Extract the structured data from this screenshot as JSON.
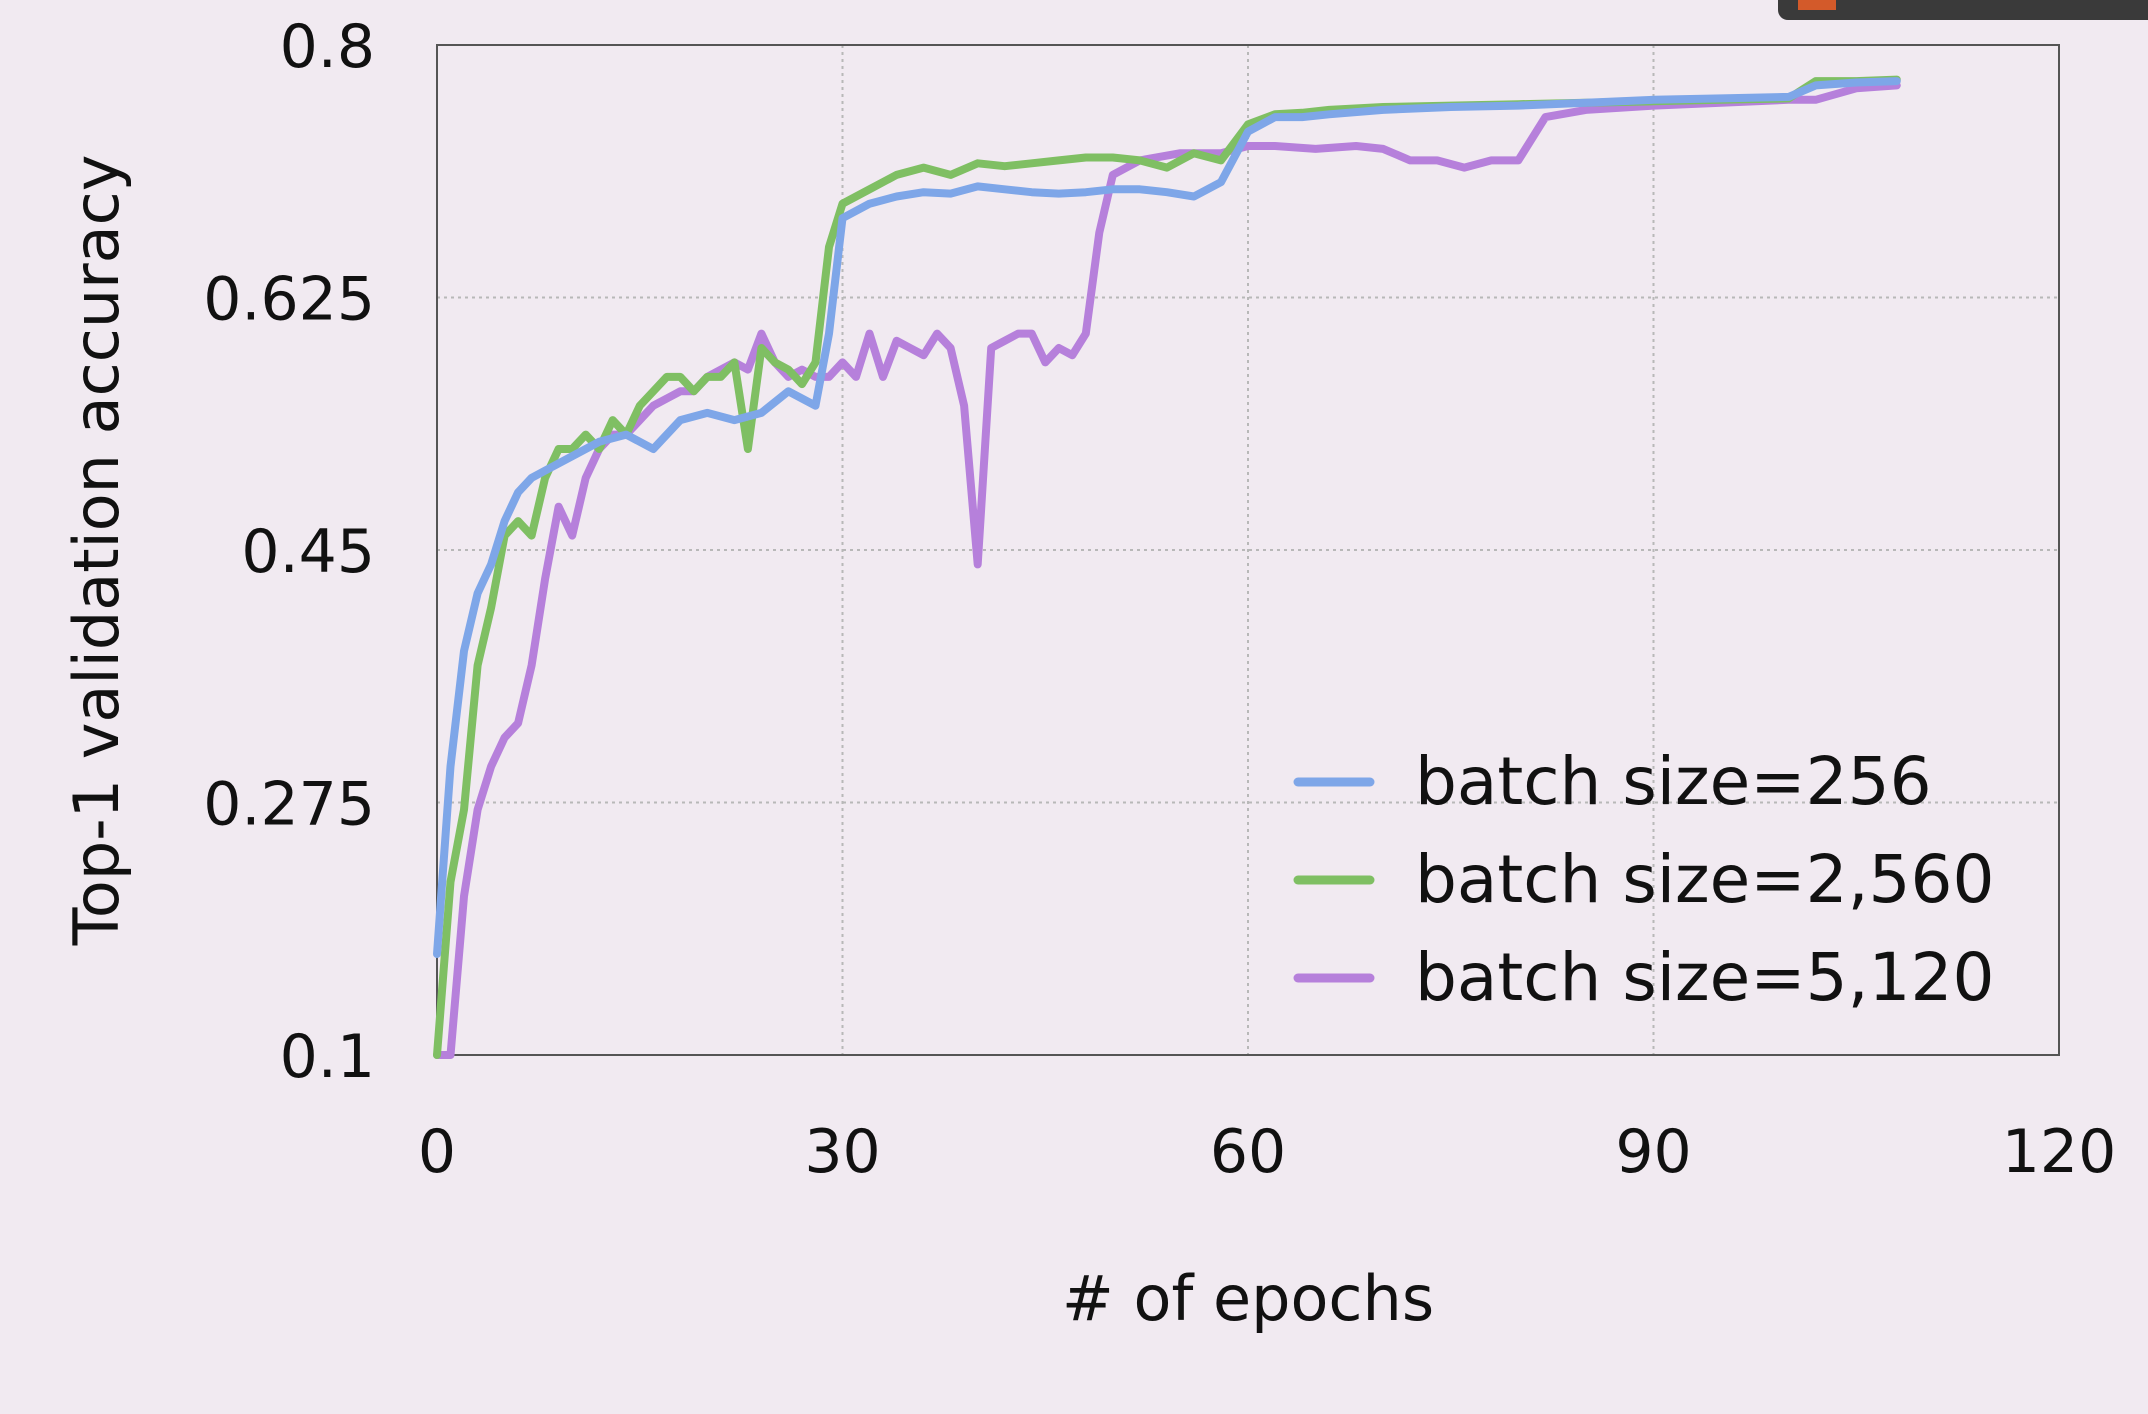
{
  "colors": {
    "background": "#f1eaf1",
    "series_256": "#7ea6e8",
    "series_2560": "#7fbf63",
    "series_5120": "#b680db",
    "axis": "#555555",
    "grid": "#b8b8b8"
  },
  "chart_data": {
    "type": "line",
    "title": "",
    "xlabel": "# of epochs",
    "ylabel": "Top-1 validation accuracy",
    "xlim": [
      0,
      120
    ],
    "ylim": [
      0.1,
      0.8
    ],
    "x_ticks": [
      0,
      30,
      60,
      90,
      120
    ],
    "y_ticks": [
      0.1,
      0.275,
      0.45,
      0.625,
      0.8
    ],
    "x_tick_labels": [
      "0",
      "30",
      "60",
      "90",
      "120"
    ],
    "y_tick_labels": [
      "0.1",
      "0.275",
      "0.45",
      "0.625",
      "0.8"
    ],
    "grid": true,
    "legend_position": "bottom-right",
    "series": [
      {
        "name": "batch size=256",
        "color": "#7ea6e8",
        "x": [
          0,
          1,
          2,
          3,
          4,
          5,
          6,
          7,
          8,
          10,
          12,
          14,
          16,
          18,
          20,
          22,
          24,
          26,
          28,
          29,
          30,
          32,
          34,
          36,
          38,
          40,
          42,
          44,
          46,
          48,
          50,
          52,
          54,
          56,
          58,
          60,
          62,
          64,
          66,
          70,
          75,
          80,
          85,
          90,
          95,
          100,
          102,
          105,
          108
        ],
        "y": [
          0.17,
          0.3,
          0.38,
          0.42,
          0.44,
          0.47,
          0.49,
          0.5,
          0.505,
          0.515,
          0.525,
          0.53,
          0.52,
          0.54,
          0.545,
          0.54,
          0.545,
          0.56,
          0.55,
          0.6,
          0.68,
          0.69,
          0.695,
          0.698,
          0.697,
          0.702,
          0.7,
          0.698,
          0.697,
          0.698,
          0.7,
          0.7,
          0.698,
          0.695,
          0.705,
          0.74,
          0.75,
          0.75,
          0.752,
          0.755,
          0.757,
          0.758,
          0.76,
          0.762,
          0.763,
          0.764,
          0.772,
          0.774,
          0.775
        ]
      },
      {
        "name": "batch size=2,560",
        "color": "#7fbf63",
        "x": [
          0,
          1,
          2,
          3,
          4,
          5,
          6,
          7,
          8,
          9,
          10,
          11,
          12,
          13,
          14,
          15,
          16,
          17,
          18,
          19,
          20,
          21,
          22,
          23,
          24,
          25,
          26,
          27,
          28,
          29,
          30,
          32,
          34,
          36,
          38,
          40,
          42,
          44,
          46,
          48,
          50,
          52,
          54,
          56,
          58,
          60,
          62,
          64,
          66,
          70,
          75,
          80,
          85,
          90,
          95,
          100,
          102,
          105,
          108
        ],
        "y": [
          0.1,
          0.22,
          0.27,
          0.37,
          0.41,
          0.46,
          0.47,
          0.46,
          0.5,
          0.52,
          0.52,
          0.53,
          0.52,
          0.54,
          0.53,
          0.55,
          0.56,
          0.57,
          0.57,
          0.56,
          0.57,
          0.57,
          0.58,
          0.52,
          0.59,
          0.58,
          0.575,
          0.565,
          0.58,
          0.66,
          0.69,
          0.7,
          0.71,
          0.715,
          0.71,
          0.718,
          0.716,
          0.718,
          0.72,
          0.722,
          0.722,
          0.72,
          0.715,
          0.725,
          0.72,
          0.745,
          0.752,
          0.753,
          0.755,
          0.757,
          0.758,
          0.759,
          0.76,
          0.761,
          0.762,
          0.763,
          0.775,
          0.775,
          0.776
        ]
      },
      {
        "name": "batch size=5,120",
        "color": "#b680db",
        "x": [
          0,
          1,
          2,
          3,
          4,
          5,
          6,
          7,
          8,
          9,
          10,
          11,
          12,
          13,
          14,
          15,
          16,
          17,
          18,
          19,
          20,
          21,
          22,
          23,
          24,
          25,
          26,
          27,
          28,
          29,
          30,
          31,
          32,
          33,
          34,
          35,
          36,
          37,
          38,
          39,
          40,
          41,
          42,
          43,
          44,
          45,
          46,
          47,
          48,
          49,
          50,
          52,
          55,
          58,
          60,
          62,
          65,
          68,
          70,
          72,
          74,
          76,
          78,
          80,
          82,
          85,
          90,
          95,
          100,
          102,
          105,
          108
        ],
        "y": [
          0.1,
          0.1,
          0.21,
          0.27,
          0.3,
          0.32,
          0.33,
          0.37,
          0.43,
          0.48,
          0.46,
          0.5,
          0.52,
          0.53,
          0.53,
          0.54,
          0.55,
          0.555,
          0.56,
          0.56,
          0.57,
          0.575,
          0.58,
          0.575,
          0.6,
          0.58,
          0.57,
          0.575,
          0.57,
          0.57,
          0.58,
          0.57,
          0.6,
          0.57,
          0.595,
          0.59,
          0.585,
          0.6,
          0.59,
          0.55,
          0.44,
          0.59,
          0.595,
          0.6,
          0.6,
          0.58,
          0.59,
          0.585,
          0.6,
          0.67,
          0.71,
          0.72,
          0.725,
          0.725,
          0.73,
          0.73,
          0.728,
          0.73,
          0.728,
          0.72,
          0.72,
          0.715,
          0.72,
          0.72,
          0.75,
          0.755,
          0.758,
          0.76,
          0.762,
          0.762,
          0.77,
          0.772
        ]
      }
    ]
  }
}
